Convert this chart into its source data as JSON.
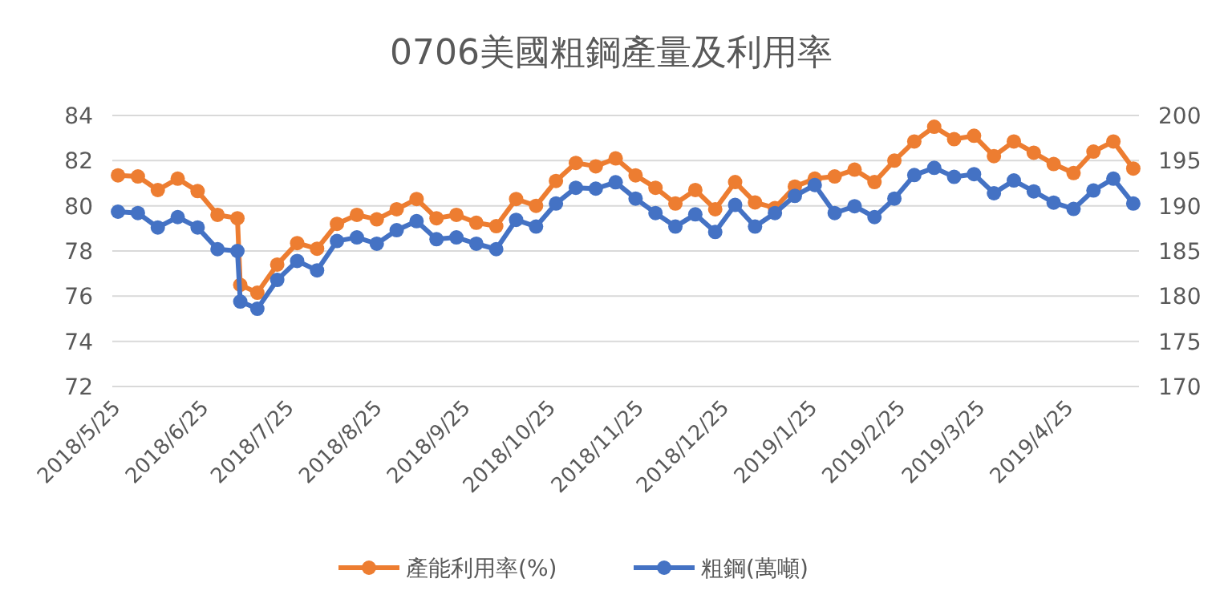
{
  "chart_data": {
    "type": "line",
    "title": "0706美國粗鋼產量及利用率",
    "x": [
      "2018-05-26",
      "2018-06-02",
      "2018-06-09",
      "2018-06-16",
      "2018-06-23",
      "2018-06-30",
      "2018-07-07",
      "2018-07-08",
      "2018-07-14",
      "2018-07-21",
      "2018-07-28",
      "2018-08-04",
      "2018-08-11",
      "2018-08-18",
      "2018-08-25",
      "2018-09-01",
      "2018-09-08",
      "2018-09-15",
      "2018-09-22",
      "2018-09-29",
      "2018-10-06",
      "2018-10-13",
      "2018-10-20",
      "2018-10-27",
      "2018-11-03",
      "2018-11-10",
      "2018-11-17",
      "2018-11-24",
      "2018-12-01",
      "2018-12-08",
      "2018-12-15",
      "2018-12-22",
      "2018-12-29",
      "2019-01-05",
      "2019-01-12",
      "2019-01-19",
      "2019-01-26",
      "2019-02-02",
      "2019-02-09",
      "2019-02-16",
      "2019-02-23",
      "2019-03-02",
      "2019-03-09",
      "2019-03-16",
      "2019-03-23",
      "2019-03-30",
      "2019-04-06",
      "2019-04-13",
      "2019-04-20",
      "2019-04-27",
      "2019-05-04",
      "2019-05-11",
      "2019-05-18"
    ],
    "series": [
      {
        "name": "產能利用率(%)",
        "color": "#ed7d31",
        "values": [
          81.35,
          81.3,
          80.7,
          81.2,
          80.65,
          79.6,
          79.45,
          76.5,
          76.15,
          77.4,
          78.35,
          78.1,
          79.2,
          79.6,
          79.4,
          79.85,
          80.3,
          79.45,
          79.6,
          79.25,
          79.1,
          80.3,
          80.0,
          81.1,
          81.9,
          81.75,
          82.1,
          81.35,
          80.8,
          80.1,
          80.7,
          79.85,
          81.05,
          80.15,
          79.9,
          80.85,
          81.2,
          81.3,
          81.6,
          81.05,
          82.0,
          82.85,
          83.5,
          82.95,
          83.1,
          82.2,
          82.85,
          82.35,
          81.85,
          81.45,
          82.4,
          82.85,
          81.65
        ]
      },
      {
        "name": "粗鋼(萬噸)",
        "color": "#4472c4",
        "axis": "y2",
        "values": [
          189.35,
          189.2,
          187.6,
          188.75,
          187.6,
          185.2,
          185.0,
          179.4,
          178.6,
          181.8,
          183.9,
          182.85,
          186.1,
          186.5,
          185.8,
          187.3,
          188.3,
          186.3,
          186.5,
          185.8,
          185.2,
          188.45,
          187.7,
          190.25,
          192.0,
          191.9,
          192.6,
          190.8,
          189.2,
          187.7,
          189.05,
          187.1,
          190.1,
          187.7,
          189.2,
          191.1,
          192.3,
          189.2,
          189.95,
          188.75,
          190.8,
          193.4,
          194.2,
          193.2,
          193.5,
          191.4,
          192.8,
          191.6,
          190.35,
          189.65,
          191.7,
          193.0,
          190.25
        ]
      }
    ],
    "xlim": [
      "2018-05-24",
      "2019-05-20"
    ],
    "xticks": [
      {
        "value": "2018-05-25",
        "label": "2018/5/25"
      },
      {
        "value": "2018-06-25",
        "label": "2018/6/25"
      },
      {
        "value": "2018-07-25",
        "label": "2018/7/25"
      },
      {
        "value": "2018-08-25",
        "label": "2018/8/25"
      },
      {
        "value": "2018-09-25",
        "label": "2018/9/25"
      },
      {
        "value": "2018-10-25",
        "label": "2018/10/25"
      },
      {
        "value": "2018-11-25",
        "label": "2018/11/25"
      },
      {
        "value": "2018-12-25",
        "label": "2018/12/25"
      },
      {
        "value": "2019-01-25",
        "label": "2019/1/25"
      },
      {
        "value": "2019-02-25",
        "label": "2019/2/25"
      },
      {
        "value": "2019-03-25",
        "label": "2019/3/25"
      },
      {
        "value": "2019-04-25",
        "label": "2019/4/25"
      }
    ],
    "ylim": [
      72,
      84
    ],
    "yticks": [
      72,
      74,
      76,
      78,
      80,
      82,
      84
    ],
    "y2lim": [
      170,
      200
    ],
    "y2ticks": [
      170,
      175,
      180,
      185,
      190,
      195,
      200
    ],
    "grid": "y",
    "legend": "bottom",
    "marker": "circle",
    "line_style": "solid"
  }
}
